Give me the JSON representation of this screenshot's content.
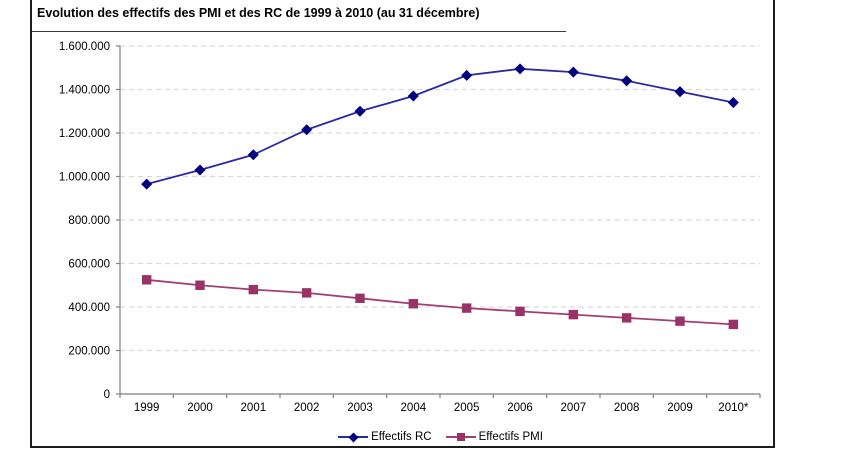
{
  "figure": {
    "title": "Evolution des effectifs des PMI et des RC de 1999 à 2010 (au 31 décembre)"
  },
  "chart_data": {
    "type": "line",
    "title": "Evolution des effectifs des PMI et des RC de 1999 à 2010 (au 31 décembre)",
    "categories": [
      "1999",
      "2000",
      "2001",
      "2002",
      "2003",
      "2004",
      "2005",
      "2006",
      "2007",
      "2008",
      "2009",
      "2010*"
    ],
    "series": [
      {
        "name": "Effectifs RC",
        "marker": "diamond",
        "color": "#000080",
        "line_color": "#2929a3",
        "values": [
          965000,
          1030000,
          1100000,
          1215000,
          1300000,
          1370000,
          1465000,
          1495000,
          1480000,
          1440000,
          1390000,
          1340000
        ]
      },
      {
        "name": "Effectifs PMI",
        "marker": "square",
        "color": "#993366",
        "line_color": "#a43e72",
        "values": [
          525000,
          500000,
          480000,
          465000,
          440000,
          415000,
          395000,
          380000,
          365000,
          350000,
          335000,
          320000
        ]
      }
    ],
    "xlabel": "",
    "ylabel": "",
    "ylim": [
      0,
      1600000
    ],
    "ytick_interval": 200000,
    "ytick_labels": [
      "0",
      "200.000",
      "400.000",
      "600.000",
      "800.000",
      "1.000.000",
      "1.200.000",
      "1.400.000",
      "1.600.000"
    ],
    "grid": "horizontal-dashed",
    "legend_position": "bottom",
    "gridline_color": "#d9d9d9",
    "axis_color": "#7f7f7f"
  }
}
